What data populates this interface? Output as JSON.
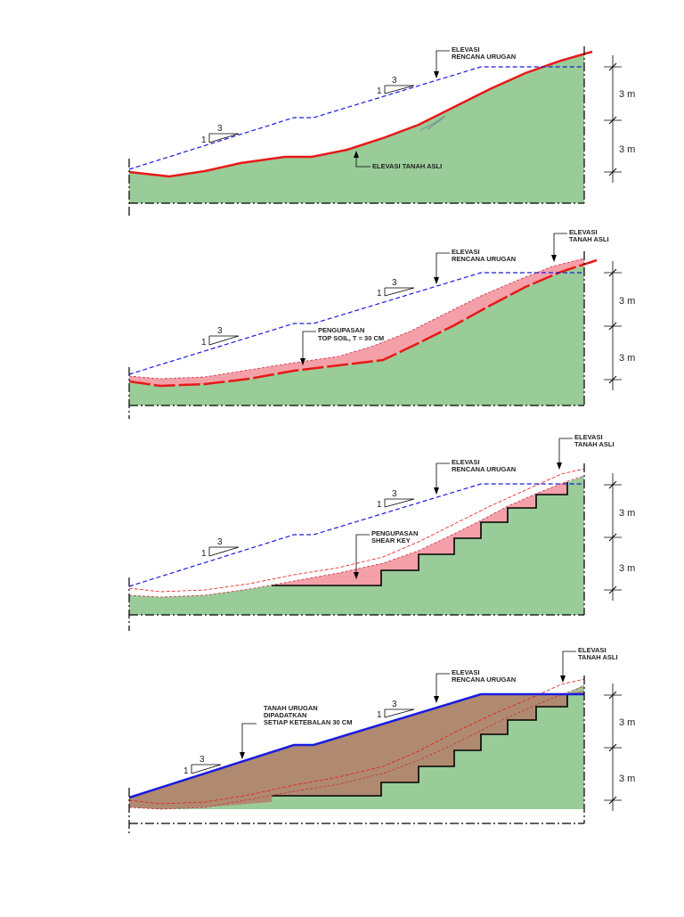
{
  "colors": {
    "ground": "#99cc99",
    "fill": "#b08a70",
    "stripping": "#f4a0a8",
    "existing_ground_line": "#e81818",
    "design_line": "#1a1ae0"
  },
  "panels": [
    {
      "label_design": [
        "ELEVASI",
        "RENCANA URUGAN"
      ],
      "label_existing": [
        "ELEVASI TANAH ASLI"
      ],
      "slope_v": "1",
      "slope_h": "3",
      "slope2_v": "1",
      "slope2_h": "3",
      "dim_upper": "3 m",
      "dim_lower": "3 m"
    },
    {
      "label_design": [
        "ELEVASI",
        "RENCANA URUGAN"
      ],
      "label_existing": [
        "ELEVASI",
        "TANAH ASLI"
      ],
      "label_stripping": [
        "PENGUPASAN",
        "TOP SOIL, T = 30 CM"
      ],
      "slope_v": "1",
      "slope_h": "3",
      "slope2_v": "1",
      "slope2_h": "3",
      "dim_upper": "3 m",
      "dim_lower": "3 m"
    },
    {
      "label_design": [
        "ELEVASI",
        "RENCANA URUGAN"
      ],
      "label_existing": [
        "ELEVASI",
        "TANAH ASLI"
      ],
      "label_stripping": [
        "PENGUPASAN",
        "SHEAR KEY"
      ],
      "slope_v": "1",
      "slope_h": "3",
      "slope2_v": "1",
      "slope2_h": "3",
      "dim_upper": "3 m",
      "dim_lower": "3 m"
    },
    {
      "label_design": [
        "ELEVASI",
        "RENCANA URUGAN"
      ],
      "label_existing": [
        "ELEVASI",
        "TANAH ASLI"
      ],
      "label_fill": [
        "TANAH URUGAN",
        "DIPADATKAN",
        "SETIAP KETEBALAN 30 CM"
      ],
      "slope_v": "1",
      "slope_h": "3",
      "slope2_v": "1",
      "slope2_h": "3",
      "dim_upper": "3 m",
      "dim_lower": "3 m"
    }
  ]
}
